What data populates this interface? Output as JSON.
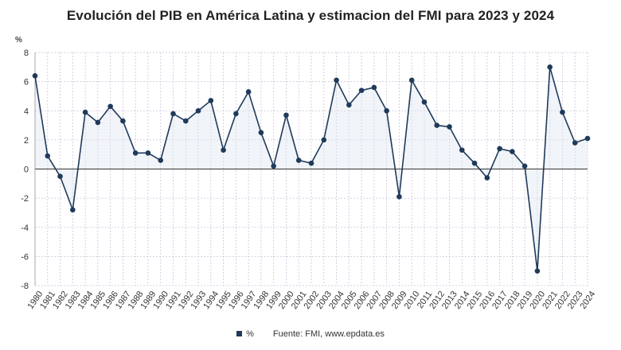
{
  "chart_data": {
    "type": "line",
    "title": "Evolución del PIB en América Latina y estimacion del FMI para 2023 y 2024",
    "ylabel": "%",
    "xlabel": "",
    "ylim": [
      -8,
      8
    ],
    "yticks": [
      -8,
      -6,
      -4,
      -2,
      0,
      2,
      4,
      6,
      8
    ],
    "grid": true,
    "legend": "bottom",
    "categories": [
      "1980",
      "1981",
      "1982",
      "1983",
      "1984",
      "1985",
      "1986",
      "1987",
      "1988",
      "1989",
      "1990",
      "1991",
      "1992",
      "1993",
      "1994",
      "1995",
      "1996",
      "1997",
      "1998",
      "1999",
      "2000",
      "2001",
      "2002",
      "2003",
      "2004",
      "2005",
      "2006",
      "2007",
      "2008",
      "2009",
      "2010",
      "2011",
      "2012",
      "2013",
      "2014",
      "2015",
      "2016",
      "2017",
      "2018",
      "2019",
      "2020",
      "2021",
      "2022",
      "2023",
      "2024"
    ],
    "series": [
      {
        "name": "%",
        "color": "#1f3a5a",
        "values": [
          6.4,
          0.9,
          -0.5,
          -2.8,
          3.9,
          3.2,
          4.3,
          3.3,
          1.1,
          1.1,
          0.6,
          3.8,
          3.3,
          4.0,
          4.7,
          1.3,
          3.8,
          5.3,
          2.5,
          0.2,
          3.7,
          0.6,
          0.4,
          2.0,
          6.1,
          4.4,
          5.4,
          5.6,
          4.0,
          -1.9,
          6.1,
          4.6,
          3.0,
          2.9,
          1.3,
          0.4,
          -0.6,
          1.4,
          1.2,
          0.2,
          -7.0,
          7.0,
          3.9,
          1.8,
          2.1
        ]
      }
    ]
  },
  "footer": {
    "legend_label": "%",
    "source": "Fuente: FMI, www.epdata.es"
  }
}
